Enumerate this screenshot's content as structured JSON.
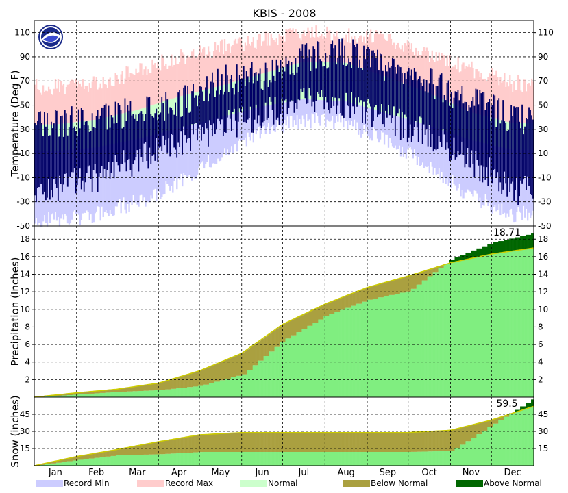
{
  "chart_data": {
    "type": "area",
    "title": "KBIS - 2008",
    "months": [
      "Jan",
      "Feb",
      "Mar",
      "Apr",
      "May",
      "Jun",
      "Jul",
      "Aug",
      "Sep",
      "Oct",
      "Nov",
      "Dec"
    ],
    "colors": {
      "record_min": "#ccccff",
      "record_max": "#ffcccc",
      "normal": "#ccffcc",
      "observed_temp": "#000066",
      "normal_accum": "#80ee80",
      "below_normal": "#aaa040",
      "above_normal": "#006600",
      "normal_line": "#cccc00"
    },
    "legend": {
      "placement": "bottom",
      "items": [
        {
          "label": "Record Min",
          "color": "#ccccff"
        },
        {
          "label": "Record Max",
          "color": "#ffcccc"
        },
        {
          "label": "Normal",
          "color": "#ccffcc"
        },
        {
          "label": "Below Normal",
          "color": "#aaa040"
        },
        {
          "label": "Above Normal",
          "color": "#006600"
        }
      ]
    },
    "temperature": {
      "ylabel": "Temperature (Deg F)",
      "ylim": [
        -50,
        120
      ],
      "ticks": [
        110,
        90,
        70,
        50,
        30,
        10,
        -10,
        -30,
        -50
      ],
      "grid": true,
      "monthly_record_max": [
        65,
        68,
        78,
        90,
        98,
        104,
        110,
        108,
        104,
        92,
        80,
        68
      ],
      "monthly_record_min": [
        -45,
        -40,
        -30,
        -15,
        10,
        28,
        38,
        35,
        20,
        0,
        -25,
        -40
      ],
      "monthly_normal_high": [
        34,
        38,
        46,
        57,
        66,
        76,
        86,
        85,
        73,
        60,
        44,
        35
      ],
      "monthly_normal_low": [
        12,
        15,
        22,
        31,
        40,
        49,
        55,
        53,
        43,
        33,
        21,
        13
      ],
      "monthly_observed_high": [
        35,
        38,
        47,
        52,
        70,
        74,
        90,
        95,
        80,
        68,
        55,
        38
      ],
      "monthly_observed_low": [
        -18,
        -10,
        5,
        18,
        32,
        42,
        52,
        50,
        38,
        25,
        5,
        -20
      ]
    },
    "precipitation": {
      "ylabel": "Precipitation (Inches)",
      "ylim": [
        0,
        19.5
      ],
      "ticks": [
        2,
        4,
        6,
        8,
        10,
        12,
        14,
        16,
        18
      ],
      "annotation": "18.71",
      "month_start_normal": [
        0,
        0.5,
        0.9,
        1.6,
        3.0,
        5.0,
        8.3,
        10.6,
        12.5,
        13.8,
        15.3,
        16.3,
        17.0
      ],
      "month_start_observed": [
        0,
        0.3,
        0.6,
        0.8,
        1.3,
        2.6,
        6.5,
        9.3,
        11.1,
        12.1,
        15.8,
        17.6,
        18.71
      ]
    },
    "snow": {
      "ylabel": "Snow (inches)",
      "ylim": [
        0,
        60
      ],
      "ticks": [
        15,
        30,
        45
      ],
      "annotation": "59.5",
      "month_start_normal": [
        0,
        8,
        14,
        21,
        27,
        29,
        29,
        29,
        29,
        29,
        31,
        40,
        52
      ],
      "month_start_observed": [
        0,
        5,
        9,
        10,
        12,
        12,
        12,
        12,
        12,
        12,
        13,
        36,
        59.5
      ]
    }
  }
}
